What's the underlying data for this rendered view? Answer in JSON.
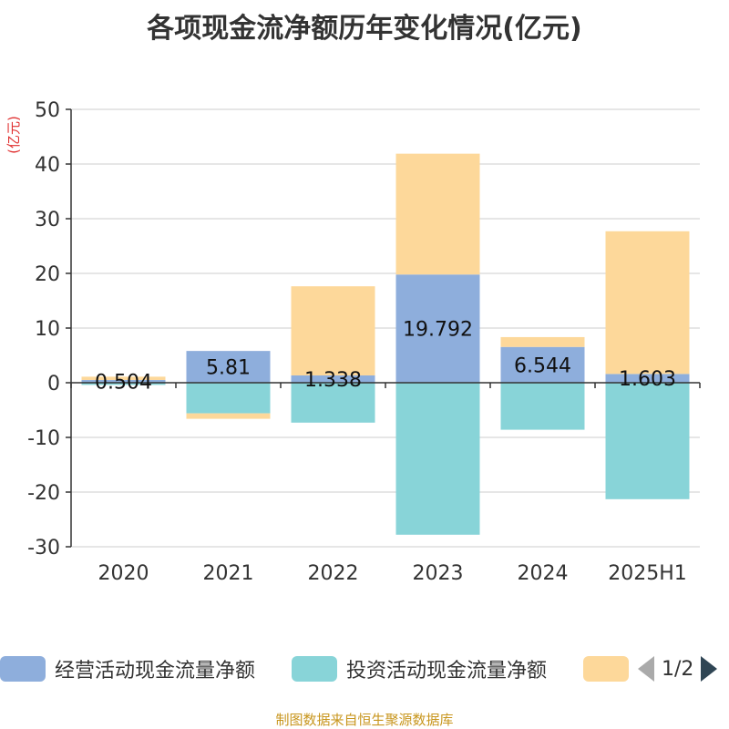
{
  "chart_data": {
    "type": "bar",
    "stacked": true,
    "title": "各项现金流净额历年变化情况(亿元)",
    "ylabel": "(亿元)",
    "categories": [
      "2020",
      "2021",
      "2022",
      "2023",
      "2024",
      "2025H1"
    ],
    "ylim": [
      -30,
      50
    ],
    "yticks": [
      50,
      40,
      30,
      20,
      10,
      0,
      -10,
      -20,
      -30
    ],
    "grid": true,
    "legend_position": "bottom",
    "series": [
      {
        "name": "经营活动现金流量净额",
        "color": "#8eaedc",
        "values": [
          0.504,
          5.81,
          1.338,
          19.792,
          6.544,
          1.603
        ]
      },
      {
        "name": "投资活动现金流量净额",
        "color": "#88d4d8",
        "values": [
          -0.4,
          -5.6,
          -7.3,
          -27.8,
          -8.6,
          -21.3
        ]
      },
      {
        "name": "",
        "color": "#fdd89a",
        "values": [
          0.6,
          -1.0,
          16.3,
          22.1,
          1.8,
          26.1
        ]
      }
    ],
    "data_labels": [
      "0.504",
      "5.81",
      "1.338",
      "19.792",
      "6.544",
      "1.603"
    ]
  },
  "legend": {
    "page": "1/2"
  },
  "source_note": "制图数据来自恒生聚源数据库"
}
